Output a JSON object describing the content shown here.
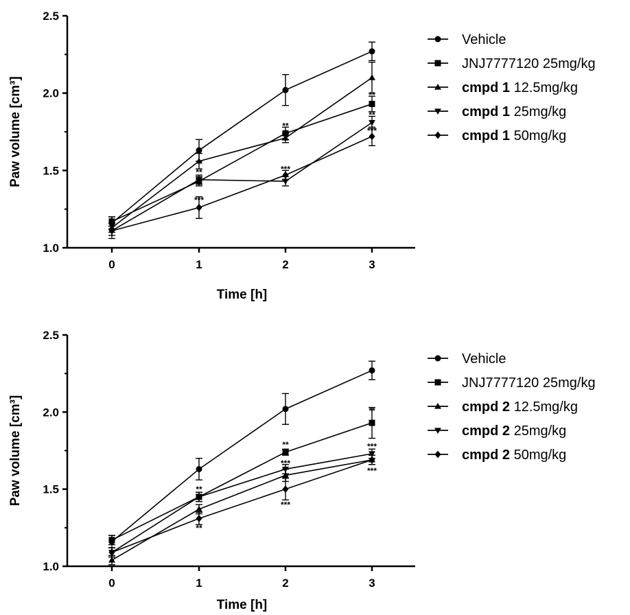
{
  "chart_data": [
    {
      "type": "line",
      "xlabel": "Time [h]",
      "ylabel": "Paw volume [cm³]",
      "x": [
        0,
        1,
        2,
        3
      ],
      "xticks": [
        "0",
        "1",
        "2",
        "3"
      ],
      "ylim": [
        1.0,
        2.5
      ],
      "yticks": [
        "1.0",
        "1.5",
        "2.0",
        "2.5"
      ],
      "legend_position": "right",
      "series": [
        {
          "name": "Vehicle",
          "name_bold": "",
          "name_rest": "Vehicle",
          "marker": "circle",
          "values": [
            1.16,
            1.63,
            2.02,
            2.27
          ],
          "errors": [
            0.04,
            0.07,
            0.1,
            0.06
          ]
        },
        {
          "name": "JNJ7777120 25mg/kg",
          "name_bold": "",
          "name_rest": "JNJ7777120 25mg/kg",
          "marker": "square",
          "values": [
            1.17,
            1.43,
            1.74,
            1.93
          ],
          "errors": [
            0.03,
            0.03,
            0.04,
            0.05
          ]
        },
        {
          "name": "cmpd 1 12.5mg/kg",
          "name_bold": "cmpd 1",
          "name_rest": " 12.5mg/kg",
          "marker": "triangle-up",
          "values": [
            1.13,
            1.56,
            1.71,
            2.1
          ],
          "errors": [
            0.03,
            0.05,
            0.03,
            0.1
          ]
        },
        {
          "name": "cmpd 1 25mg/kg",
          "name_bold": "cmpd 1",
          "name_rest": " 25mg/kg",
          "marker": "triangle-down",
          "values": [
            1.11,
            1.44,
            1.43,
            1.81
          ],
          "errors": [
            0.03,
            0.03,
            0.03,
            0.04
          ]
        },
        {
          "name": "cmpd 1 50mg/kg",
          "name_bold": "cmpd 1",
          "name_rest": " 50mg/kg",
          "marker": "diamond",
          "values": [
            1.11,
            1.26,
            1.47,
            1.72
          ],
          "errors": [
            0.05,
            0.07,
            0.03,
            0.06
          ]
        }
      ],
      "annotations": [
        {
          "text": "**",
          "x": 1,
          "y": 1.47
        },
        {
          "text": "***",
          "x": 1,
          "y": 1.29
        },
        {
          "text": "**",
          "x": 2,
          "y": 1.77
        },
        {
          "text": "***",
          "x": 2,
          "y": 1.49
        },
        {
          "text": "**",
          "x": 3,
          "y": 1.97
        },
        {
          "text": "**",
          "x": 3,
          "y": 1.84
        },
        {
          "text": "***",
          "x": 3,
          "y": 1.74
        }
      ]
    },
    {
      "type": "line",
      "xlabel": "Time [h]",
      "ylabel": "Paw volume [cm³]",
      "x": [
        0,
        1,
        2,
        3
      ],
      "xticks": [
        "0",
        "1",
        "2",
        "3"
      ],
      "ylim": [
        1.0,
        2.5
      ],
      "yticks": [
        "1.0",
        "1.5",
        "2.0",
        "2.5"
      ],
      "legend_position": "right",
      "series": [
        {
          "name": "Vehicle",
          "name_bold": "",
          "name_rest": "Vehicle",
          "marker": "circle",
          "values": [
            1.16,
            1.63,
            2.02,
            2.27
          ],
          "errors": [
            0.04,
            0.07,
            0.1,
            0.06
          ]
        },
        {
          "name": "JNJ7777120 25mg/kg",
          "name_bold": "",
          "name_rest": "JNJ7777120 25mg/kg",
          "marker": "square",
          "values": [
            1.17,
            1.45,
            1.74,
            1.93
          ],
          "errors": [
            0.03,
            0.03,
            0.02,
            0.1
          ]
        },
        {
          "name": "cmpd 2 12.5mg/kg",
          "name_bold": "cmpd 2",
          "name_rest": " 12.5mg/kg",
          "marker": "triangle-up",
          "values": [
            1.04,
            1.37,
            1.59,
            1.69
          ],
          "errors": [
            0.03,
            0.03,
            0.04,
            0.03
          ]
        },
        {
          "name": "cmpd 2 25mg/kg",
          "name_bold": "cmpd 2",
          "name_rest": " 25mg/kg",
          "marker": "triangle-down",
          "values": [
            1.09,
            1.45,
            1.63,
            1.73
          ],
          "errors": [
            0.03,
            0.03,
            0.03,
            0.03
          ]
        },
        {
          "name": "cmpd 2 50mg/kg",
          "name_bold": "cmpd 2",
          "name_rest": " 50mg/kg",
          "marker": "diamond",
          "values": [
            1.09,
            1.31,
            1.5,
            1.69
          ],
          "errors": [
            0.03,
            0.04,
            0.07,
            0.03
          ]
        }
      ],
      "annotations": [
        {
          "text": "**",
          "x": 1,
          "y": 1.48
        },
        {
          "text": "**",
          "x": 1,
          "y": 1.23
        },
        {
          "text": "**",
          "x": 2,
          "y": 1.77
        },
        {
          "text": "***",
          "x": 2,
          "y": 1.65
        },
        {
          "text": "***",
          "x": 2,
          "y": 1.38
        },
        {
          "text": "**",
          "x": 3,
          "y": 1.99
        },
        {
          "text": "***",
          "x": 3,
          "y": 1.76
        },
        {
          "text": "***",
          "x": 3,
          "y": 1.6
        }
      ]
    }
  ]
}
